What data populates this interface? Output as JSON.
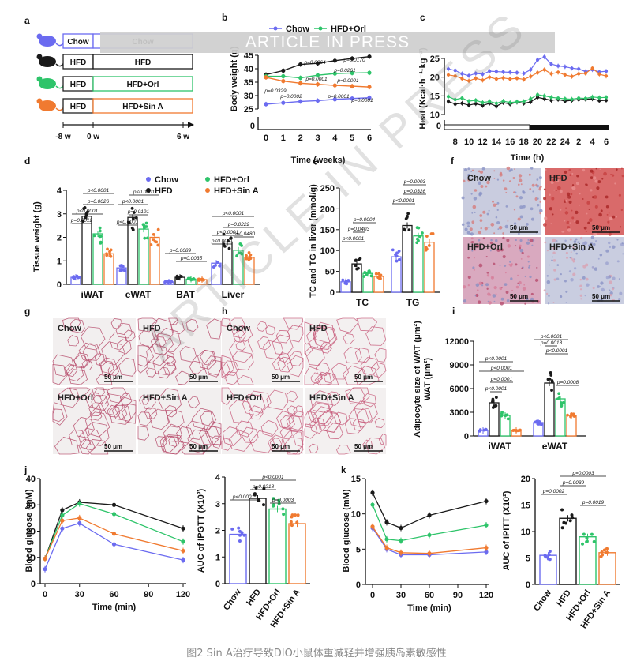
{
  "banner": "ARTICLE IN PRESS",
  "watermark": "ARTICLE IN PRESS",
  "caption": "图2 Sin A治疗导致DIO小鼠体重减轻并增强胰岛素敏感性",
  "colors": {
    "chow": "#6b6bf0",
    "hfd": "#1a1a1a",
    "orl": "#2ec46a",
    "sin": "#f07a30",
    "cap": "#8a8a8a"
  },
  "panels": {
    "a": {
      "letter": "a",
      "rows": [
        [
          "Chow",
          "Chow"
        ],
        [
          "HFD",
          "HFD"
        ],
        [
          "HFD",
          "HFD+Orl"
        ],
        [
          "HFD",
          "HFD+Sin A"
        ]
      ],
      "timeline": [
        "-8 w",
        "0 w",
        "6 w"
      ]
    },
    "b": {
      "letter": "b",
      "legend": [
        "Chow",
        "HFD+Orl"
      ],
      "pvals": [
        "p=0.0364",
        "p=0.0170",
        "p=0.0261",
        "p=0.0001",
        "p=0.0001",
        "p=0.0329",
        "p=0.0002",
        "p=0.0001",
        "p=0.0001"
      ]
    },
    "c": {
      "letter": "c"
    },
    "d": {
      "letter": "d",
      "legend": [
        "Chow",
        "HFD+Orl",
        "HFD",
        "HFD+Sin A"
      ],
      "pvals": [
        "p<0.0001",
        "p=0.0026",
        "p<0.0001",
        "p=0.0012",
        "p<0.0001",
        "p<0.0001",
        "p=0.0191",
        "p<0.0001",
        "p=0.0089",
        "p=0.0035",
        "p<0.0001",
        "p<0.0001",
        "p=0.0222",
        "p=0.0480",
        "p<0.0001"
      ]
    },
    "e": {
      "letter": "e",
      "pvals": [
        "p=0.0004",
        "p=0.0403",
        "p<0.0001",
        "p=0.0003",
        "p=0.0328",
        "p<0.0001"
      ]
    },
    "f": {
      "letter": "f",
      "labels": [
        "Chow",
        "HFD",
        "HFD+Orl",
        "HFD+Sin A"
      ],
      "scale": "50 μm"
    },
    "g": {
      "letter": "g",
      "labels": [
        "Chow",
        "HFD",
        "HFD+Orl",
        "HFD+Sin A"
      ],
      "scale": "50 μm"
    },
    "h": {
      "letter": "h",
      "labels": [
        "Chow",
        "HFD",
        "HFD+Orl",
        "HFD+Sin A"
      ],
      "scale": "50 μm"
    },
    "i": {
      "letter": "i",
      "pvals": [
        "p<0.0001",
        "p<0.0001",
        "p<0.0001",
        "p<0.0001",
        "p<0.0001",
        "p=0.0013",
        "p=0.0008",
        "p<0.0001"
      ]
    },
    "j": {
      "letter": "j",
      "pvals": [
        "p<0.0001",
        "p=0.0218",
        "p=0.0003",
        "p<0.0001"
      ]
    },
    "k": {
      "letter": "k",
      "pvals": [
        "p=0.0003",
        "p=0.0039",
        "p=0.0019",
        "p=0.0002"
      ]
    }
  },
  "chart_data": [
    {
      "id": "b",
      "type": "line",
      "title": "",
      "xlabel": "Time (weeks)",
      "ylabel": "Body weight (g)",
      "x": [
        0,
        1,
        2,
        3,
        4,
        5,
        6
      ],
      "ylim": [
        25,
        45
      ],
      "yticks": [
        25,
        30,
        35,
        40,
        45
      ],
      "series": [
        {
          "name": "Chow",
          "values": [
            26.8,
            27.3,
            27.8,
            28.1,
            28.6,
            28.9,
            29.2
          ]
        },
        {
          "name": "HFD",
          "values": [
            37.8,
            39.3,
            41.6,
            42.0,
            43.0,
            43.8,
            44.5
          ]
        },
        {
          "name": "HFD+Orl",
          "values": [
            37.2,
            37.2,
            36.6,
            37.6,
            38.2,
            38.4,
            38.5
          ]
        },
        {
          "name": "HFD+Sin A",
          "values": [
            36.8,
            35.4,
            34.6,
            34.2,
            33.8,
            33.5,
            33.2
          ]
        }
      ]
    },
    {
      "id": "c",
      "type": "line",
      "title": "",
      "xlabel": "Time (h)",
      "ylabel": "Heat (Kcal·h⁻¹·kg⁻¹)",
      "x": [
        7,
        8,
        9,
        10,
        11,
        12,
        13,
        14,
        15,
        16,
        17,
        18,
        19,
        20,
        21,
        22,
        23,
        24,
        1,
        2,
        3,
        4,
        5,
        6
      ],
      "xticks": [
        "8",
        "10",
        "12",
        "14",
        "16",
        "18",
        "20",
        "22",
        "24",
        "2",
        "4",
        "6"
      ],
      "ylim": [
        10,
        25
      ],
      "yticks": [
        10,
        15,
        20,
        25
      ],
      "dark_phase": "19-6 h",
      "series": [
        {
          "name": "Chow",
          "values": [
            22.2,
            21.8,
            20.9,
            20.4,
            21.0,
            20.8,
            21.6,
            21.5,
            21.4,
            21.3,
            21.2,
            21.0,
            22.0,
            24.6,
            25.4,
            23.5,
            23.0,
            22.8,
            22.4,
            22.2,
            21.5,
            22.0,
            21.4,
            21.6
          ]
        },
        {
          "name": "HFD",
          "values": [
            13.5,
            12.8,
            13.0,
            12.5,
            12.9,
            12.4,
            13.0,
            12.2,
            13.2,
            12.8,
            13.3,
            13.0,
            13.4,
            14.6,
            14.2,
            13.8,
            14.0,
            13.6,
            13.8,
            14.0,
            14.1,
            14.2,
            13.7,
            13.8
          ]
        },
        {
          "name": "HFD+Orl",
          "values": [
            14.8,
            14.0,
            14.4,
            13.6,
            13.8,
            13.2,
            13.5,
            13.0,
            13.6,
            13.2,
            13.4,
            13.5,
            14.2,
            15.3,
            15.0,
            14.6,
            14.4,
            14.2,
            14.1,
            14.4,
            14.3,
            14.7,
            14.5,
            14.6
          ]
        },
        {
          "name": "HFD+Sin A",
          "values": [
            20.6,
            20.3,
            19.6,
            19.0,
            19.7,
            19.2,
            20.0,
            19.5,
            19.8,
            19.5,
            19.7,
            19.4,
            20.2,
            21.2,
            22.0,
            20.9,
            21.3,
            20.6,
            20.2,
            20.9,
            21.0,
            22.4,
            20.8,
            20.3
          ]
        }
      ]
    },
    {
      "id": "d",
      "type": "bar",
      "title": "",
      "xlabel": "",
      "ylabel": "Tissue weight (g)",
      "categories": [
        "iWAT",
        "eWAT",
        "BAT",
        "Liver"
      ],
      "ylim": [
        0,
        4
      ],
      "yticks": [
        0,
        1,
        2,
        3,
        4
      ],
      "series": [
        {
          "name": "Chow",
          "values": [
            0.3,
            0.7,
            0.1,
            0.9
          ]
        },
        {
          "name": "HFD",
          "values": [
            2.9,
            2.85,
            0.3,
            1.8
          ]
        },
        {
          "name": "HFD+Orl",
          "values": [
            2.15,
            2.35,
            0.22,
            1.45
          ]
        },
        {
          "name": "HFD+Sin A",
          "values": [
            1.3,
            2.0,
            0.2,
            1.15
          ]
        }
      ]
    },
    {
      "id": "e",
      "type": "bar",
      "title": "",
      "xlabel": "",
      "ylabel": "TC and TG in liver (mmol/g)",
      "categories": [
        "TC",
        "TG"
      ],
      "ylim": [
        0,
        250
      ],
      "yticks": [
        0,
        50,
        100,
        150,
        200,
        250
      ],
      "series": [
        {
          "name": "Chow",
          "values": [
            25,
            85
          ]
        },
        {
          "name": "HFD",
          "values": [
            68,
            160
          ]
        },
        {
          "name": "HFD+Orl",
          "values": [
            45,
            135
          ]
        },
        {
          "name": "HFD+Sin A",
          "values": [
            38,
            120
          ]
        }
      ]
    },
    {
      "id": "i",
      "type": "bar",
      "title": "",
      "xlabel": "",
      "ylabel": "Adipocyte size of WAT (μm²)",
      "categories": [
        "iWAT",
        "eWAT"
      ],
      "ylim": [
        0,
        12000
      ],
      "yticks": [
        0,
        3000,
        6000,
        9000,
        12000
      ],
      "series": [
        {
          "name": "Chow",
          "values": [
            700,
            1700
          ]
        },
        {
          "name": "HFD",
          "values": [
            4200,
            6700
          ]
        },
        {
          "name": "HFD+Orl",
          "values": [
            2600,
            4700
          ]
        },
        {
          "name": "HFD+Sin A",
          "values": [
            700,
            2600
          ]
        }
      ]
    },
    {
      "id": "j1",
      "type": "line",
      "title": "",
      "xlabel": "Time (min)",
      "ylabel": "Blood glucose (mM)",
      "x": [
        0,
        15,
        30,
        60,
        120
      ],
      "ylim": [
        0,
        40
      ],
      "yticks": [
        0,
        10,
        20,
        30,
        40
      ],
      "xticks": [
        0,
        30,
        60,
        90,
        120
      ],
      "series": [
        {
          "name": "Chow",
          "values": [
            5.5,
            21,
            23,
            15,
            9
          ]
        },
        {
          "name": "HFD",
          "values": [
            9.5,
            28,
            31,
            30,
            21
          ]
        },
        {
          "name": "HFD+Orl",
          "values": [
            9.5,
            26,
            30.5,
            26.5,
            16
          ]
        },
        {
          "name": "HFD+Sin A",
          "values": [
            9.5,
            24,
            25,
            19,
            12.5
          ]
        }
      ]
    },
    {
      "id": "j2",
      "type": "bar",
      "title": "",
      "xlabel": "",
      "ylabel": "AUC of IPGTT (X10³)",
      "categories": [
        "Chow",
        "HFD",
        "HFD+Orl",
        "HFD+Sin A"
      ],
      "ylim": [
        0,
        4
      ],
      "yticks": [
        0,
        1,
        2,
        3,
        4
      ],
      "values": [
        1.85,
        3.2,
        2.8,
        2.25
      ]
    },
    {
      "id": "k1",
      "type": "line",
      "title": "",
      "xlabel": "Time (min)",
      "ylabel": "Blood glucose (mM)",
      "x": [
        0,
        15,
        30,
        60,
        120
      ],
      "ylim": [
        0,
        15
      ],
      "yticks": [
        0,
        5,
        10,
        15
      ],
      "xticks": [
        0,
        30,
        60,
        90,
        120
      ],
      "series": [
        {
          "name": "Chow",
          "values": [
            8,
            5,
            4.2,
            4.2,
            4.6
          ]
        },
        {
          "name": "HFD",
          "values": [
            13,
            8.8,
            8,
            9.8,
            11.8
          ]
        },
        {
          "name": "HFD+Orl",
          "values": [
            11.3,
            6.4,
            6.2,
            7,
            8.4
          ]
        },
        {
          "name": "HFD+Sin A",
          "values": [
            8.2,
            5.2,
            4.5,
            4.4,
            5.2
          ]
        }
      ]
    },
    {
      "id": "k2",
      "type": "bar",
      "title": "",
      "xlabel": "",
      "ylabel": "AUC of IPITT (X10²)",
      "categories": [
        "Chow",
        "HFD",
        "HFD+Orl",
        "HFD+Sin A"
      ],
      "ylim": [
        0,
        20
      ],
      "yticks": [
        0,
        5,
        10,
        15,
        20
      ],
      "values": [
        5.5,
        12.5,
        9,
        6
      ]
    }
  ]
}
